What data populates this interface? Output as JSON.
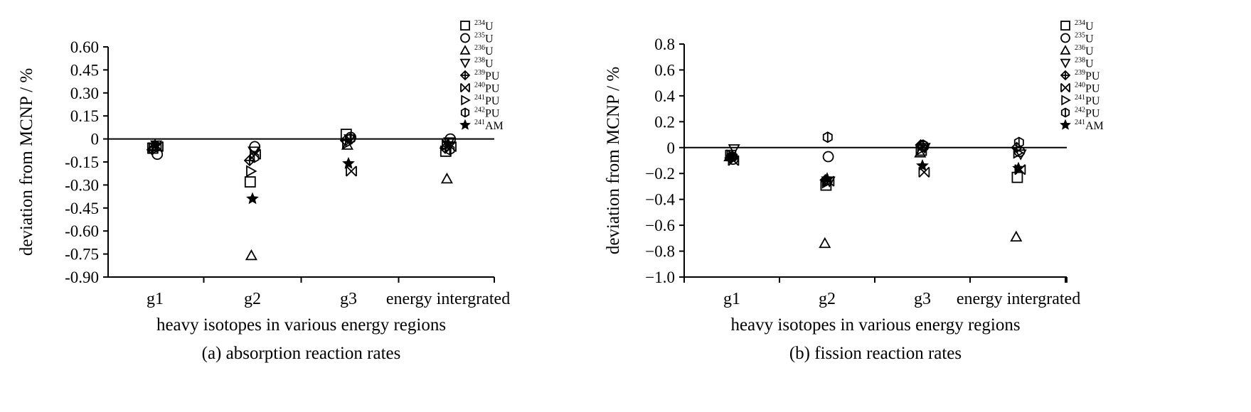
{
  "chart_data": [
    {
      "type": "scatter",
      "title": "",
      "caption": "(a) absorption reaction rates",
      "xlabel": "heavy isotopes in various energy regions",
      "ylabel": "deviation from MCNP / %",
      "categories": [
        "g1",
        "g2",
        "g3",
        "energy intergrated"
      ],
      "ylim": [
        -0.9,
        0.6
      ],
      "yticks": [
        "0.60",
        "0.45",
        "0.30",
        "0.15",
        "0",
        "-0.15",
        "-0.30",
        "-0.45",
        "-0.60",
        "-0.75",
        "-0.90"
      ],
      "legend_position": "top-right",
      "series": [
        {
          "name": "234U",
          "values": [
            -0.06,
            -0.28,
            0.03,
            -0.08
          ]
        },
        {
          "name": "235U",
          "values": [
            -0.1,
            -0.05,
            0.01,
            0.0
          ]
        },
        {
          "name": "236U",
          "values": [
            -0.05,
            -0.76,
            -0.04,
            -0.26
          ]
        },
        {
          "name": "238U",
          "values": [
            -0.04,
            -0.08,
            0.0,
            -0.02
          ]
        },
        {
          "name": "239PU",
          "values": [
            -0.07,
            -0.14,
            -0.01,
            -0.06
          ]
        },
        {
          "name": "240PU",
          "values": [
            -0.05,
            -0.1,
            -0.21,
            -0.05
          ]
        },
        {
          "name": "241PU",
          "values": [
            -0.06,
            -0.21,
            -0.03,
            -0.04
          ]
        },
        {
          "name": "242PU",
          "values": [
            -0.05,
            -0.12,
            0.0,
            -0.07
          ]
        },
        {
          "name": "241AM",
          "values": [
            -0.04,
            -0.39,
            -0.16,
            -0.03
          ]
        }
      ]
    },
    {
      "type": "scatter",
      "title": "",
      "caption": "(b) fission reaction rates",
      "xlabel": "heavy isotopes in various energy regions",
      "ylabel": "deviation from MCNP / %",
      "categories": [
        "g1",
        "g2",
        "g3",
        "energy intergrated"
      ],
      "ylim": [
        -1.0,
        0.8
      ],
      "yticks": [
        "0.8",
        "0.6",
        "0.4",
        "0.2",
        "0",
        "−0.2",
        "−0.4",
        "−0.6",
        "−0.8",
        "−1.0"
      ],
      "legend_position": "top-right",
      "series": [
        {
          "name": "234U",
          "values": [
            -0.06,
            -0.29,
            -0.02,
            -0.23
          ]
        },
        {
          "name": "235U",
          "values": [
            -0.09,
            -0.07,
            0.01,
            -0.03
          ]
        },
        {
          "name": "236U",
          "values": [
            -0.07,
            -0.74,
            -0.04,
            -0.69
          ]
        },
        {
          "name": "238U",
          "values": [
            -0.01,
            -0.26,
            0.0,
            -0.05
          ]
        },
        {
          "name": "239PU",
          "values": [
            -0.08,
            -0.25,
            0.02,
            0.0
          ]
        },
        {
          "name": "240PU",
          "values": [
            -0.1,
            -0.26,
            -0.19,
            -0.17
          ]
        },
        {
          "name": "241PU",
          "values": [
            -0.06,
            -0.27,
            -0.01,
            -0.04
          ]
        },
        {
          "name": "242PU",
          "values": [
            -0.07,
            0.08,
            0.02,
            0.04
          ]
        },
        {
          "name": "241AM",
          "values": [
            -0.07,
            -0.24,
            -0.14,
            -0.16
          ]
        }
      ]
    }
  ],
  "legend": {
    "entries": [
      {
        "sup": "234",
        "base": "U",
        "marker": "square"
      },
      {
        "sup": "235",
        "base": "U",
        "marker": "circle"
      },
      {
        "sup": "236",
        "base": "U",
        "marker": "triangle-up"
      },
      {
        "sup": "238",
        "base": "U",
        "marker": "triangle-down"
      },
      {
        "sup": "239",
        "base": "PU",
        "marker": "diamond-plus"
      },
      {
        "sup": "240",
        "base": "PU",
        "marker": "box-x"
      },
      {
        "sup": "241",
        "base": "PU",
        "marker": "triangle-right"
      },
      {
        "sup": "242",
        "base": "PU",
        "marker": "hexagon"
      },
      {
        "sup": "241",
        "base": "AM",
        "marker": "star"
      }
    ]
  }
}
